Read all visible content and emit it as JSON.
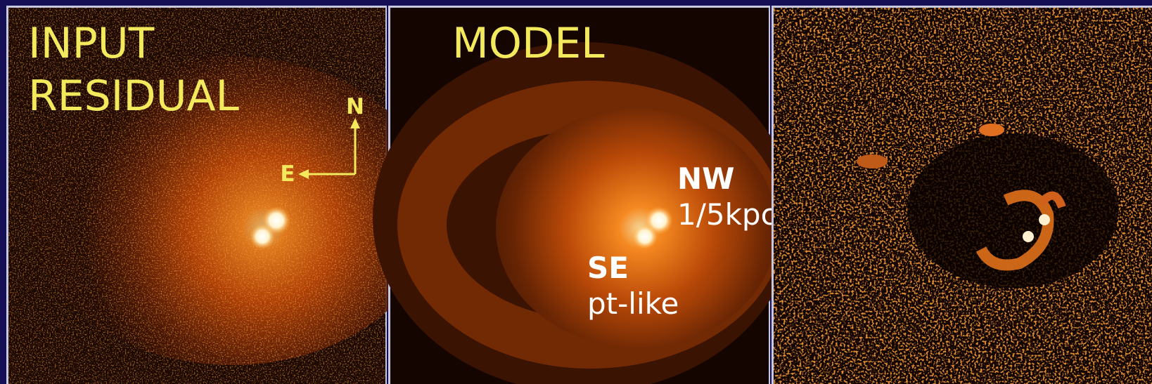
{
  "input_panel": {
    "title_lines": [
      "INPUT",
      "RESIDUAL"
    ],
    "compass": {
      "north": "N",
      "east": "E"
    }
  },
  "model_panel": {
    "title": "MODEL",
    "annotations": [
      {
        "name": "NW",
        "note": "1/5kpc"
      },
      {
        "name": "SE",
        "note": "pt-like"
      }
    ]
  }
}
